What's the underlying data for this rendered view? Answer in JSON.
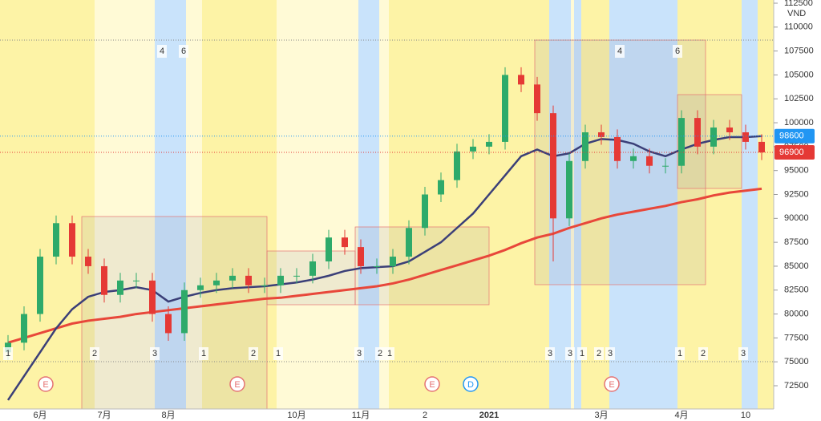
{
  "chart_data": {
    "type": "candlestick",
    "categories": [
      null,
      null,
      "6月",
      null,
      null,
      null,
      "7月",
      null,
      null,
      null,
      "8月",
      null,
      null,
      null,
      null,
      null,
      null,
      null,
      "10月",
      null,
      null,
      null,
      "11月",
      null,
      null,
      null,
      "2",
      null,
      null,
      null,
      "2021",
      null,
      null,
      null,
      null,
      null,
      null,
      "3月",
      null,
      null,
      null,
      null,
      "4月",
      null,
      null,
      null,
      "10",
      null
    ],
    "open": [
      76000,
      77000,
      80000,
      86000,
      89500,
      86000,
      85000,
      82000,
      83500,
      83500,
      80000,
      78000,
      82500,
      83000,
      83500,
      84000,
      83000,
      83000,
      84000,
      84000,
      85500,
      88000,
      87000,
      85000,
      85000,
      86000,
      89000,
      92500,
      94000,
      97000,
      97500,
      98000,
      105000,
      104000,
      101000,
      90000,
      96000,
      99000,
      98500,
      96000,
      96500,
      95500,
      95500,
      100500,
      97500,
      99500,
      99000,
      98000
    ],
    "high": [
      77800,
      80800,
      86800,
      90300,
      90300,
      86800,
      85800,
      84300,
      84300,
      84300,
      80800,
      83300,
      83800,
      84300,
      84800,
      84800,
      83800,
      84800,
      84800,
      86300,
      88800,
      88800,
      87800,
      85800,
      86800,
      89800,
      93300,
      94800,
      97800,
      98300,
      98800,
      105800,
      105800,
      104800,
      101800,
      96800,
      99800,
      99800,
      99300,
      97300,
      97300,
      96300,
      101300,
      101300,
      100300,
      100300,
      99800,
      98800
    ],
    "low": [
      75200,
      76200,
      79200,
      85200,
      85200,
      84200,
      81200,
      81200,
      82700,
      79200,
      77200,
      77200,
      81700,
      82200,
      82700,
      82200,
      82200,
      82200,
      83200,
      83200,
      84700,
      86200,
      84200,
      84200,
      84200,
      85200,
      88200,
      91700,
      93200,
      96200,
      96700,
      97200,
      103200,
      100200,
      85500,
      89200,
      95200,
      97700,
      95200,
      95200,
      94700,
      94700,
      94700,
      96700,
      96700,
      98200,
      97200,
      96100
    ],
    "close": [
      77000,
      80000,
      86000,
      89500,
      86000,
      85000,
      82000,
      83500,
      83500,
      80000,
      78000,
      82500,
      83000,
      83500,
      84000,
      83000,
      83000,
      84000,
      84000,
      85500,
      88000,
      87000,
      85000,
      85000,
      86000,
      89000,
      92500,
      94000,
      97000,
      97500,
      98000,
      105000,
      104000,
      101000,
      90000,
      96000,
      99000,
      98500,
      96000,
      96500,
      95500,
      95500,
      100500,
      97500,
      99500,
      99000,
      98000,
      96900
    ],
    "up_color": "#2eaa6a",
    "down_color": "#e53935",
    "series": [
      {
        "color": "#e8473a",
        "values": [
          77000,
          77500,
          78000,
          78500,
          79000,
          79300,
          79500,
          79700,
          80000,
          80200,
          80400,
          80600,
          80800,
          81000,
          81200,
          81400,
          81600,
          81700,
          81900,
          82100,
          82300,
          82500,
          82700,
          82900,
          83200,
          83600,
          84100,
          84600,
          85100,
          85600,
          86100,
          86700,
          87400,
          88000,
          88400,
          89000,
          89500,
          90000,
          90400,
          90700,
          91000,
          91300,
          91700,
          92000,
          92400,
          92700,
          92900,
          93100
        ]
      },
      {
        "color": "#3b3f78",
        "values": [
          71000,
          73500,
          76000,
          78500,
          80500,
          81800,
          82300,
          82500,
          82800,
          82500,
          81300,
          81800,
          82200,
          82500,
          82700,
          82800,
          82900,
          83100,
          83300,
          83600,
          84000,
          84500,
          84800,
          84900,
          85000,
          85500,
          86500,
          87500,
          89000,
          90500,
          92500,
          94500,
          96500,
          97200,
          96500,
          96800,
          97800,
          98300,
          98200,
          97800,
          97000,
          96500,
          97200,
          97800,
          98200,
          98500,
          98500,
          98600
        ]
      }
    ],
    "ylim": [
      70070,
      112835
    ],
    "yticks": [
      72500,
      75000,
      77500,
      80000,
      82500,
      85000,
      87500,
      90000,
      92500,
      95000,
      97500,
      100000,
      102500,
      105000,
      107500,
      110000,
      112500
    ],
    "y_unit": "VND",
    "last_prices": [
      {
        "value": 98600,
        "color": "#2196f3"
      },
      {
        "value": 96900,
        "color": "#e53935"
      }
    ],
    "events": [
      "E",
      "E",
      "E",
      "D",
      "E"
    ],
    "top_labels": [
      "4",
      "6",
      "4",
      "6"
    ],
    "bottom_labels": [
      "1",
      "2",
      "3",
      "1",
      "2",
      "1",
      "3",
      "2",
      "1",
      "3",
      "3",
      "1",
      "2",
      "3",
      "1",
      "2",
      "3"
    ]
  }
}
